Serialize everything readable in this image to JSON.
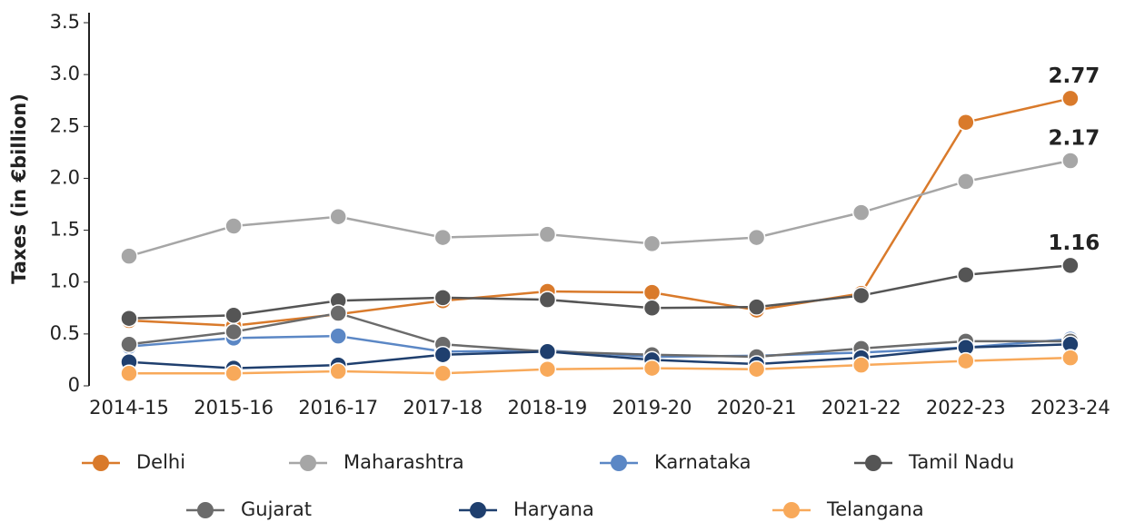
{
  "chart_data": {
    "type": "line",
    "y_label": "Taxes (in €billion)",
    "categories": [
      "2014-15",
      "2015-16",
      "2016-17",
      "2017-18",
      "2018-19",
      "2019-20",
      "2020-21",
      "2021-22",
      "2022-23",
      "2023-24"
    ],
    "ylim": [
      0,
      3.5
    ],
    "yticks": [
      0,
      0.5,
      {
        "value": 1,
        "label": "1.0"
      },
      1.5,
      {
        "value": 2,
        "label": "2.0"
      },
      2.5,
      {
        "value": 3,
        "label": "3.0"
      },
      3.5
    ],
    "grid": false,
    "series": [
      {
        "name": "Delhi",
        "color": "#d97a2b",
        "values": [
          0.63,
          0.58,
          0.69,
          0.82,
          0.91,
          0.9,
          0.73,
          0.89,
          2.54,
          2.77
        ]
      },
      {
        "name": "Maharashtra",
        "color": "#a6a6a6",
        "values": [
          1.25,
          1.54,
          1.63,
          1.43,
          1.46,
          1.37,
          1.43,
          1.67,
          1.97,
          2.17
        ]
      },
      {
        "name": "Karnataka",
        "color": "#5b87c5",
        "values": [
          0.38,
          0.46,
          0.48,
          0.33,
          0.34,
          0.28,
          0.29,
          0.32,
          0.37,
          0.45
        ]
      },
      {
        "name": "Tamil Nadu",
        "color": "#555555",
        "values": [
          0.65,
          0.68,
          0.82,
          0.85,
          0.83,
          0.75,
          0.76,
          0.87,
          1.07,
          1.16
        ]
      },
      {
        "name": "Gujarat",
        "color": "#6b6b6b",
        "values": [
          0.4,
          0.52,
          0.7,
          0.4,
          0.33,
          0.3,
          0.28,
          0.36,
          0.43,
          0.43
        ]
      },
      {
        "name": "Haryana",
        "color": "#1f3f6e",
        "values": [
          0.23,
          0.17,
          0.2,
          0.3,
          0.33,
          0.25,
          0.21,
          0.27,
          0.37,
          0.4
        ]
      },
      {
        "name": "Telangana",
        "color": "#f8a95a",
        "values": [
          0.12,
          0.12,
          0.14,
          0.12,
          0.16,
          0.17,
          0.16,
          0.2,
          0.24,
          0.27
        ]
      }
    ]
  }
}
